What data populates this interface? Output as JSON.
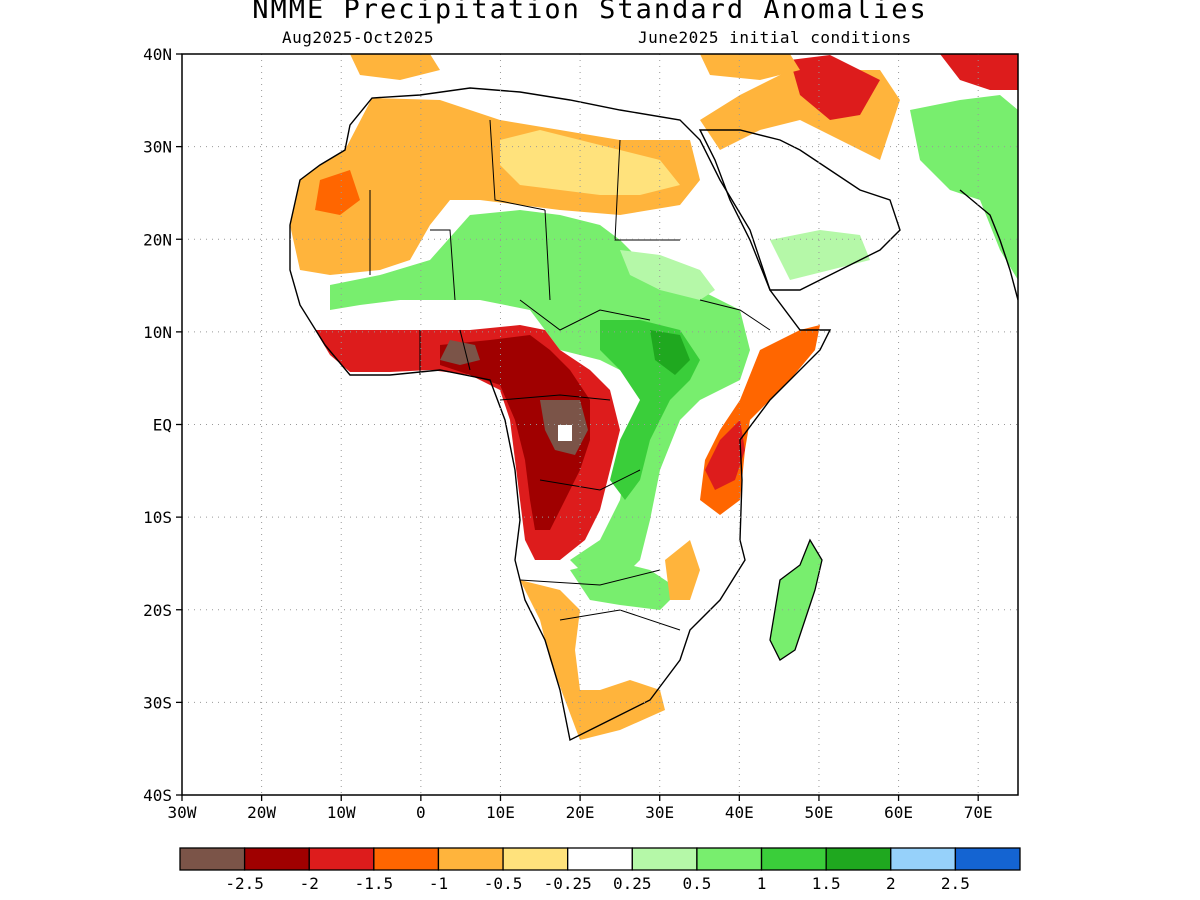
{
  "title": "NMME Precipitation Standard Anomalies",
  "subtitle_left": "Aug2025-Oct2025",
  "subtitle_right": "June2025 initial conditions",
  "lat_ticks": [
    "40N",
    "30N",
    "20N",
    "10N",
    "EQ",
    "10S",
    "20S",
    "30S",
    "40S"
  ],
  "lon_ticks": [
    "30W",
    "20W",
    "10W",
    "0",
    "10E",
    "20E",
    "30E",
    "40E",
    "50E",
    "60E",
    "70E"
  ],
  "colorbar": {
    "colors": [
      "#7b5448",
      "#a00000",
      "#dd1c1c",
      "#ff6600",
      "#ffb43c",
      "#ffe27c",
      "#ffffff",
      "#b5f8a8",
      "#78ee6e",
      "#3ace3a",
      "#1fa81f",
      "#96d1fa",
      "#1464d2"
    ],
    "labels": [
      "-2.5",
      "-2",
      "-1.5",
      "-1",
      "-0.5",
      "-0.25",
      "0.25",
      "0.5",
      "1",
      "1.5",
      "2",
      "2.5"
    ]
  },
  "map": {
    "lon_range": [
      -30,
      75
    ],
    "lat_range": [
      -40,
      40
    ],
    "grid": "dotted",
    "regions": [
      {
        "name": "north-africa-dry",
        "category": "-0.5",
        "color": "#ffb43c"
      },
      {
        "name": "sahel-wet",
        "category": "1",
        "color": "#78ee6e"
      },
      {
        "name": "guinea-coast-dry",
        "category": "-1.5",
        "color": "#dd1c1c"
      },
      {
        "name": "congo-basin-very-dry",
        "category": "-2.5",
        "color": "#7b5448"
      },
      {
        "name": "central-africa-dry",
        "category": "-2",
        "color": "#a00000"
      },
      {
        "name": "east-africa-wet",
        "category": "1.5",
        "color": "#3ace3a"
      },
      {
        "name": "horn-of-africa-dry",
        "category": "-1",
        "color": "#ff6600"
      },
      {
        "name": "southern-africa-dry",
        "category": "-0.5",
        "color": "#ffb43c"
      },
      {
        "name": "madagascar-wet",
        "category": "1",
        "color": "#78ee6e"
      },
      {
        "name": "middle-east-dry",
        "category": "-1.5",
        "color": "#dd1c1c"
      },
      {
        "name": "pakistan-wet",
        "category": "1",
        "color": "#78ee6e"
      }
    ]
  }
}
